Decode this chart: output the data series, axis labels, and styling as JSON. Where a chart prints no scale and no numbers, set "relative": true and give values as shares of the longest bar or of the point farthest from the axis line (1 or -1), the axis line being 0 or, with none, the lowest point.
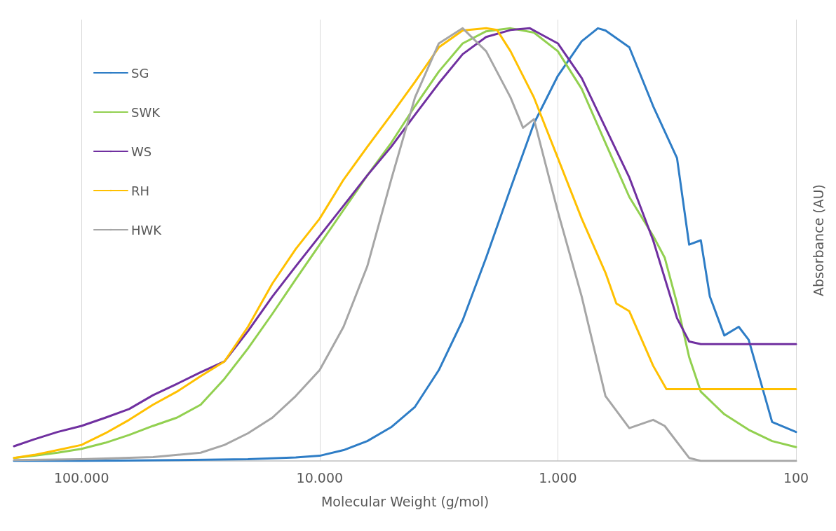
{
  "chart_data": {
    "type": "line",
    "xlabel": "Molecular Weight (g/mol)",
    "ylabel": "Absorbance (AU)",
    "relative": true,
    "log": "x",
    "xlim": [
      192000,
      100
    ],
    "xticks": [
      {
        "value": 100000,
        "label": "100.000"
      },
      {
        "value": 10000,
        "label": "10.000"
      },
      {
        "value": 1000,
        "label": "1.000"
      },
      100
    ],
    "grid": "x",
    "legend": "top left",
    "marker": "none",
    "line_style": "solid",
    "series": [
      {
        "name": "SG",
        "color": "#2e7dc6",
        "x": [
          192000,
          100000,
          39800,
          20000,
          12600,
          10000,
          7940,
          6310,
          5010,
          3980,
          3160,
          2510,
          2000,
          1580,
          1260,
          1000,
          794,
          679,
          631,
          501,
          398,
          316,
          281,
          251,
          230,
          200,
          174,
          158,
          126,
          100
        ],
        "values": [
          0,
          0,
          0.002,
          0.004,
          0.008,
          0.012,
          0.025,
          0.046,
          0.078,
          0.125,
          0.21,
          0.325,
          0.47,
          0.63,
          0.78,
          0.89,
          0.97,
          1,
          0.995,
          0.956,
          0.82,
          0.7,
          0.5,
          0.51,
          0.38,
          0.29,
          0.31,
          0.28,
          0.09,
          0.067
        ]
      },
      {
        "name": "SWK",
        "color": "#92d050",
        "x": [
          192000,
          158000,
          126000,
          100000,
          79400,
          63100,
          50100,
          39800,
          31600,
          25100,
          20000,
          15800,
          12600,
          10000,
          7940,
          6310,
          5010,
          3980,
          3160,
          2510,
          2000,
          1580,
          1260,
          1000,
          794,
          631,
          501,
          398,
          356,
          316,
          281,
          251,
          200,
          158,
          126,
          100
        ],
        "values": [
          0.007,
          0.012,
          0.019,
          0.028,
          0.042,
          0.06,
          0.081,
          0.1,
          0.13,
          0.19,
          0.26,
          0.34,
          0.42,
          0.5,
          0.58,
          0.66,
          0.735,
          0.82,
          0.9,
          0.965,
          0.993,
          1,
          0.99,
          0.947,
          0.86,
          0.735,
          0.61,
          0.52,
          0.47,
          0.364,
          0.24,
          0.16,
          0.108,
          0.072,
          0.046,
          0.032
        ]
      },
      {
        "name": "WS",
        "color": "#7030a0",
        "x": [
          192000,
          158000,
          126000,
          100000,
          79400,
          63100,
          50100,
          39800,
          31600,
          25100,
          20000,
          15800,
          12600,
          10000,
          7940,
          6310,
          5010,
          3980,
          3160,
          2510,
          2000,
          1580,
          1310,
          1000,
          794,
          631,
          501,
          398,
          316,
          281,
          251,
          200,
          100
        ],
        "values": [
          0.034,
          0.05,
          0.067,
          0.081,
          0.1,
          0.12,
          0.152,
          0.178,
          0.205,
          0.23,
          0.3,
          0.38,
          0.45,
          0.52,
          0.59,
          0.66,
          0.726,
          0.8,
          0.873,
          0.94,
          0.98,
          0.996,
          1,
          0.965,
          0.885,
          0.77,
          0.655,
          0.51,
          0.33,
          0.276,
          0.27,
          0.27,
          0.27
        ]
      },
      {
        "name": "RH",
        "color": "#ffc000",
        "x": [
          192000,
          158000,
          126000,
          100000,
          79400,
          63100,
          50100,
          39800,
          31600,
          25100,
          20000,
          15800,
          12600,
          10000,
          7940,
          6310,
          5010,
          3980,
          3160,
          2510,
          2000,
          1800,
          1580,
          1260,
          1000,
          794,
          631,
          568,
          501,
          398,
          350,
          316,
          100
        ],
        "values": [
          0.007,
          0.014,
          0.025,
          0.037,
          0.064,
          0.095,
          0.13,
          0.16,
          0.196,
          0.23,
          0.31,
          0.41,
          0.49,
          0.56,
          0.65,
          0.726,
          0.8,
          0.876,
          0.956,
          0.995,
          1,
          0.996,
          0.947,
          0.84,
          0.7,
          0.56,
          0.435,
          0.364,
          0.346,
          0.22,
          0.166,
          0.166,
          0.166
        ]
      },
      {
        "name": "HWK",
        "color": "#a6a6a6",
        "x": [
          192000,
          100000,
          50100,
          31600,
          25100,
          20000,
          15800,
          12600,
          10000,
          7940,
          6310,
          5010,
          3980,
          3160,
          2510,
          2000,
          1580,
          1400,
          1260,
          1000,
          794,
          631,
          501,
          398,
          356,
          281,
          251,
          100
        ],
        "values": [
          0.002,
          0.004,
          0.009,
          0.019,
          0.037,
          0.064,
          0.1,
          0.15,
          0.21,
          0.31,
          0.45,
          0.65,
          0.84,
          0.965,
          1,
          0.947,
          0.84,
          0.77,
          0.79,
          0.576,
          0.38,
          0.15,
          0.076,
          0.095,
          0.081,
          0.007,
          0,
          0
        ]
      }
    ]
  }
}
